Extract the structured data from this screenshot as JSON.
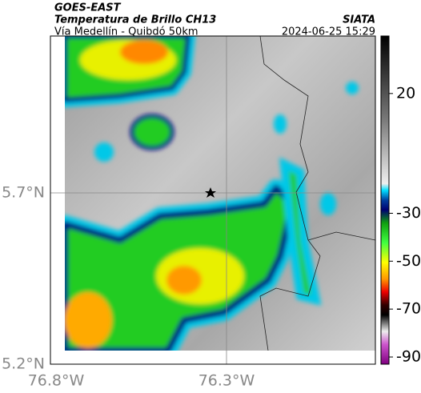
{
  "header": {
    "source": "GOES-EAST",
    "title": "Temperatura de Brillo CH13",
    "subtitle": "Vía Medellín - Quibdó 50km",
    "agency": "SIATA",
    "datetime": "2024-06-25 15:29"
  },
  "map": {
    "lat_labels": [
      "5.7°N",
      "5.2°N"
    ],
    "lon_labels": [
      "76.8°W",
      "76.3°W"
    ]
  },
  "colorbar": {
    "lim": [
      44,
      -93
    ],
    "ticks": [
      20,
      -30,
      -50,
      -70,
      -90
    ]
  }
}
